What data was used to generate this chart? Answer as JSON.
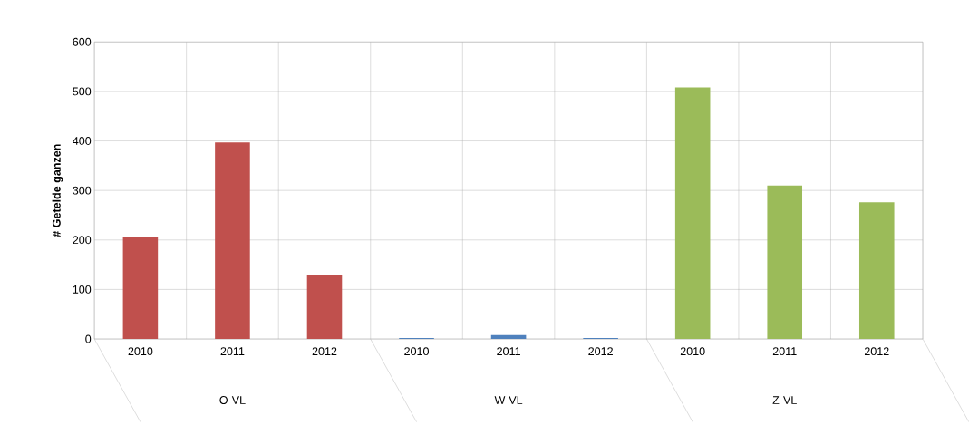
{
  "chart_data": {
    "type": "bar",
    "ylabel": "# Getelde ganzen",
    "categories": [
      "2010",
      "2011",
      "2012",
      "2010",
      "2011",
      "2012",
      "2010",
      "2011",
      "2012"
    ],
    "values": [
      205,
      397,
      128,
      2,
      8,
      2,
      508,
      310,
      276
    ],
    "colors": [
      "#c0504d",
      "#c0504d",
      "#c0504d",
      "#4f81bd",
      "#4f81bd",
      "#4f81bd",
      "#9bbb59",
      "#9bbb59",
      "#9bbb59"
    ],
    "ylim": [
      0,
      600
    ],
    "yticks": [
      0,
      100,
      200,
      300,
      400,
      500,
      600
    ],
    "grid": true,
    "annotations": [
      "O-VL",
      "W-VL",
      "Z-VL"
    ]
  }
}
